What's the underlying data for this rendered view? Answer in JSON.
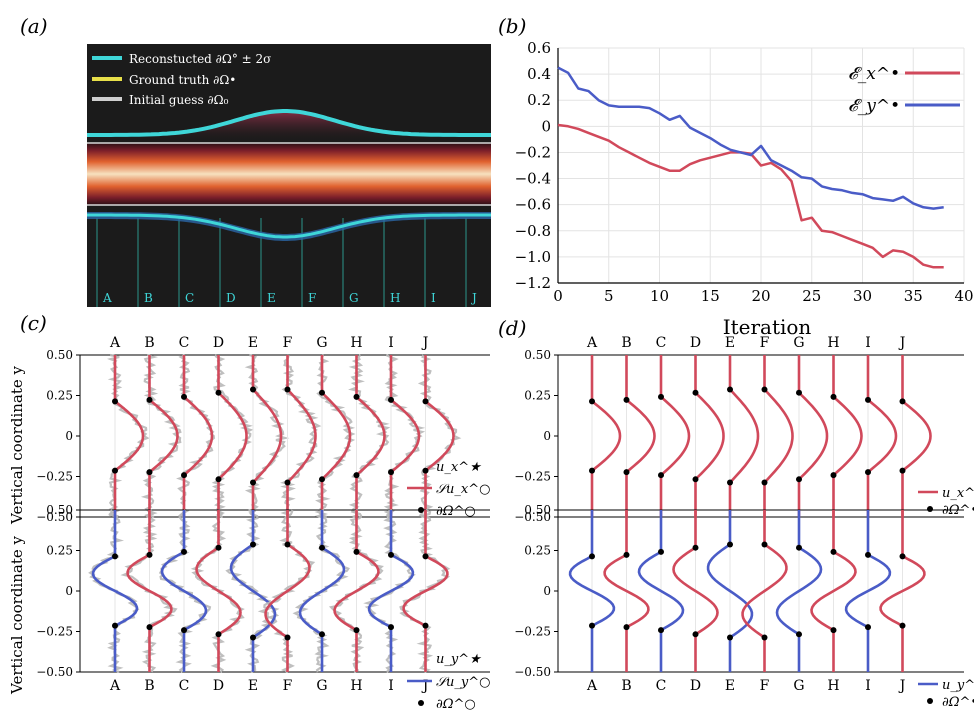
{
  "colors": {
    "red": "#d1495b",
    "blue": "#4a5cc7",
    "cyan": "#3fd6d8",
    "yellow": "#e8e04a",
    "gray": "#b8b8b8",
    "dark": "#1a1a1a"
  },
  "panel_labels": {
    "a": "(a)",
    "b": "(b)",
    "c": "(c)",
    "d": "(d)"
  },
  "station_letters": [
    "A",
    "B",
    "C",
    "D",
    "E",
    "F",
    "G",
    "H",
    "I",
    "J"
  ],
  "panel_a": {
    "legend": [
      {
        "label": "Reconstucted ∂Ω° ± 2σ",
        "color_key": "cyan"
      },
      {
        "label": "Ground truth ∂Ω•",
        "color_key": "yellow"
      },
      {
        "label": "Initial guess ∂Ω₀",
        "color_key": "gray"
      }
    ]
  },
  "panel_c_d": {
    "ylabel_top": "Vertical coordinate y",
    "ylabel_bottom": "Vertical coordinate y",
    "ytick_labels": [
      "0.50",
      "0.25",
      "0",
      "−0.25",
      "−0.50"
    ],
    "ytick_values": [
      0.5,
      0.25,
      0,
      -0.25,
      -0.5
    ],
    "legend_c_top": [
      "u_x^★",
      "𝒮u_x^○",
      "∂Ω^○"
    ],
    "legend_c_bottom": [
      "u_y^★",
      "𝒮u_y^○",
      "∂Ω^○"
    ],
    "legend_d_top": [
      "u_x^•",
      "∂Ω^•"
    ],
    "legend_d_bottom": [
      "u_y^•",
      "∂Ω^•"
    ]
  },
  "chart_data": {
    "type": "line",
    "xlabel": "Iteration",
    "ylabel": "",
    "xlim": [
      0,
      40
    ],
    "ylim": [
      -1.2,
      0.6
    ],
    "xticks": [
      0,
      5,
      10,
      15,
      20,
      25,
      30,
      35,
      40
    ],
    "yticks": [
      0.6,
      0.4,
      0.2,
      0,
      -0.2,
      -0.4,
      -0.6,
      -0.8,
      -1.0,
      -1.2
    ],
    "grid": true,
    "legend_position": "top-right",
    "x": [
      0,
      1,
      2,
      3,
      4,
      5,
      6,
      7,
      8,
      9,
      10,
      11,
      12,
      13,
      14,
      15,
      16,
      17,
      18,
      19,
      20,
      21,
      22,
      23,
      24,
      25,
      26,
      27,
      28,
      29,
      30,
      31,
      32,
      33,
      34,
      35,
      36,
      37,
      38
    ],
    "series": [
      {
        "name": "𝓔_x^•",
        "color_key": "red",
        "values": [
          0.01,
          0.0,
          -0.02,
          -0.05,
          -0.08,
          -0.11,
          -0.16,
          -0.2,
          -0.24,
          -0.28,
          -0.31,
          -0.34,
          -0.34,
          -0.29,
          -0.26,
          -0.24,
          -0.22,
          -0.2,
          -0.2,
          -0.21,
          -0.3,
          -0.28,
          -0.33,
          -0.42,
          -0.72,
          -0.7,
          -0.8,
          -0.81,
          -0.84,
          -0.87,
          -0.9,
          -0.93,
          -1.0,
          -0.95,
          -0.96,
          -1.0,
          -1.06,
          -1.08,
          -1.08
        ]
      },
      {
        "name": "𝓔_y^•",
        "color_key": "blue",
        "values": [
          0.45,
          0.41,
          0.29,
          0.27,
          0.2,
          0.16,
          0.15,
          0.15,
          0.15,
          0.14,
          0.1,
          0.05,
          0.08,
          -0.01,
          -0.05,
          -0.09,
          -0.14,
          -0.18,
          -0.2,
          -0.22,
          -0.15,
          -0.26,
          -0.3,
          -0.34,
          -0.39,
          -0.4,
          -0.46,
          -0.48,
          -0.49,
          -0.51,
          -0.52,
          -0.55,
          -0.56,
          -0.57,
          -0.54,
          -0.59,
          -0.62,
          -0.63,
          -0.62
        ]
      }
    ]
  }
}
